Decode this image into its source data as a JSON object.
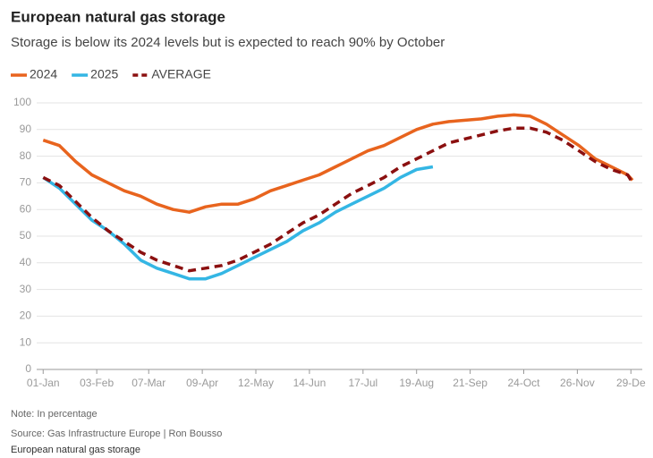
{
  "chart_data": {
    "type": "line",
    "title": "European natural gas storage",
    "subtitle": "Storage is below its 2024 levels but is expected to reach 90% by October",
    "note": "Note: In percentage",
    "source": "Source: Gas Infrastructure Europe  | Ron Bousso",
    "caption": "European natural gas storage",
    "x": [
      0,
      10,
      20,
      30,
      40,
      50,
      60,
      70,
      80,
      90,
      100,
      110,
      120,
      130,
      140,
      150,
      160,
      170,
      180,
      190,
      200,
      210,
      220,
      230,
      240,
      250,
      260,
      270,
      280,
      290,
      300,
      310,
      320,
      330,
      340,
      350,
      360,
      363
    ],
    "xlim": [
      -4,
      369
    ],
    "xticks": [
      {
        "value": 0,
        "label": "01-Jan"
      },
      {
        "value": 33,
        "label": "03-Feb"
      },
      {
        "value": 65,
        "label": "07-Mar"
      },
      {
        "value": 98,
        "label": "09-Apr"
      },
      {
        "value": 131,
        "label": "12-May"
      },
      {
        "value": 164,
        "label": "14-Jun"
      },
      {
        "value": 197,
        "label": "17-Jul"
      },
      {
        "value": 230,
        "label": "19-Aug"
      },
      {
        "value": 263,
        "label": "21-Sep"
      },
      {
        "value": 296,
        "label": "24-Oct"
      },
      {
        "value": 329,
        "label": "26-Nov"
      },
      {
        "value": 362,
        "label": "29-De"
      }
    ],
    "ylim": [
      0,
      100
    ],
    "yticks": [
      0,
      10,
      20,
      30,
      40,
      50,
      60,
      70,
      80,
      90,
      100
    ],
    "grid": true,
    "legend": "top-left",
    "series": [
      {
        "name": "2024",
        "color": "#e8641e",
        "style": "solid",
        "values": [
          86,
          84,
          78,
          73,
          70,
          67,
          65,
          62,
          60,
          59,
          61,
          62,
          62,
          64,
          67,
          69,
          71,
          73,
          76,
          79,
          82,
          84,
          87,
          90,
          92,
          93,
          93.5,
          94,
          95,
          95.5,
          95,
          92,
          88,
          84,
          79,
          76,
          73,
          71
        ]
      },
      {
        "name": "2025",
        "color": "#34b6e4",
        "style": "solid",
        "values": [
          72,
          68,
          62,
          56,
          52,
          47,
          41,
          38,
          36,
          34,
          34,
          36,
          39,
          42,
          45,
          48,
          52,
          55,
          59,
          62,
          65,
          68,
          72,
          75,
          76,
          null,
          null,
          null,
          null,
          null,
          null,
          null,
          null,
          null,
          null,
          null,
          null,
          null
        ]
      },
      {
        "name": "AVERAGE",
        "color": "#8b1010",
        "style": "dashed",
        "values": [
          72,
          69,
          63,
          57,
          52,
          48,
          44,
          41,
          39,
          37,
          38,
          39,
          41,
          44,
          47,
          51,
          55,
          58,
          62,
          66,
          69,
          72,
          76,
          79,
          82,
          85,
          86.5,
          88,
          89.5,
          90.5,
          90.5,
          89,
          86,
          82,
          78,
          75,
          73,
          70
        ]
      }
    ]
  }
}
